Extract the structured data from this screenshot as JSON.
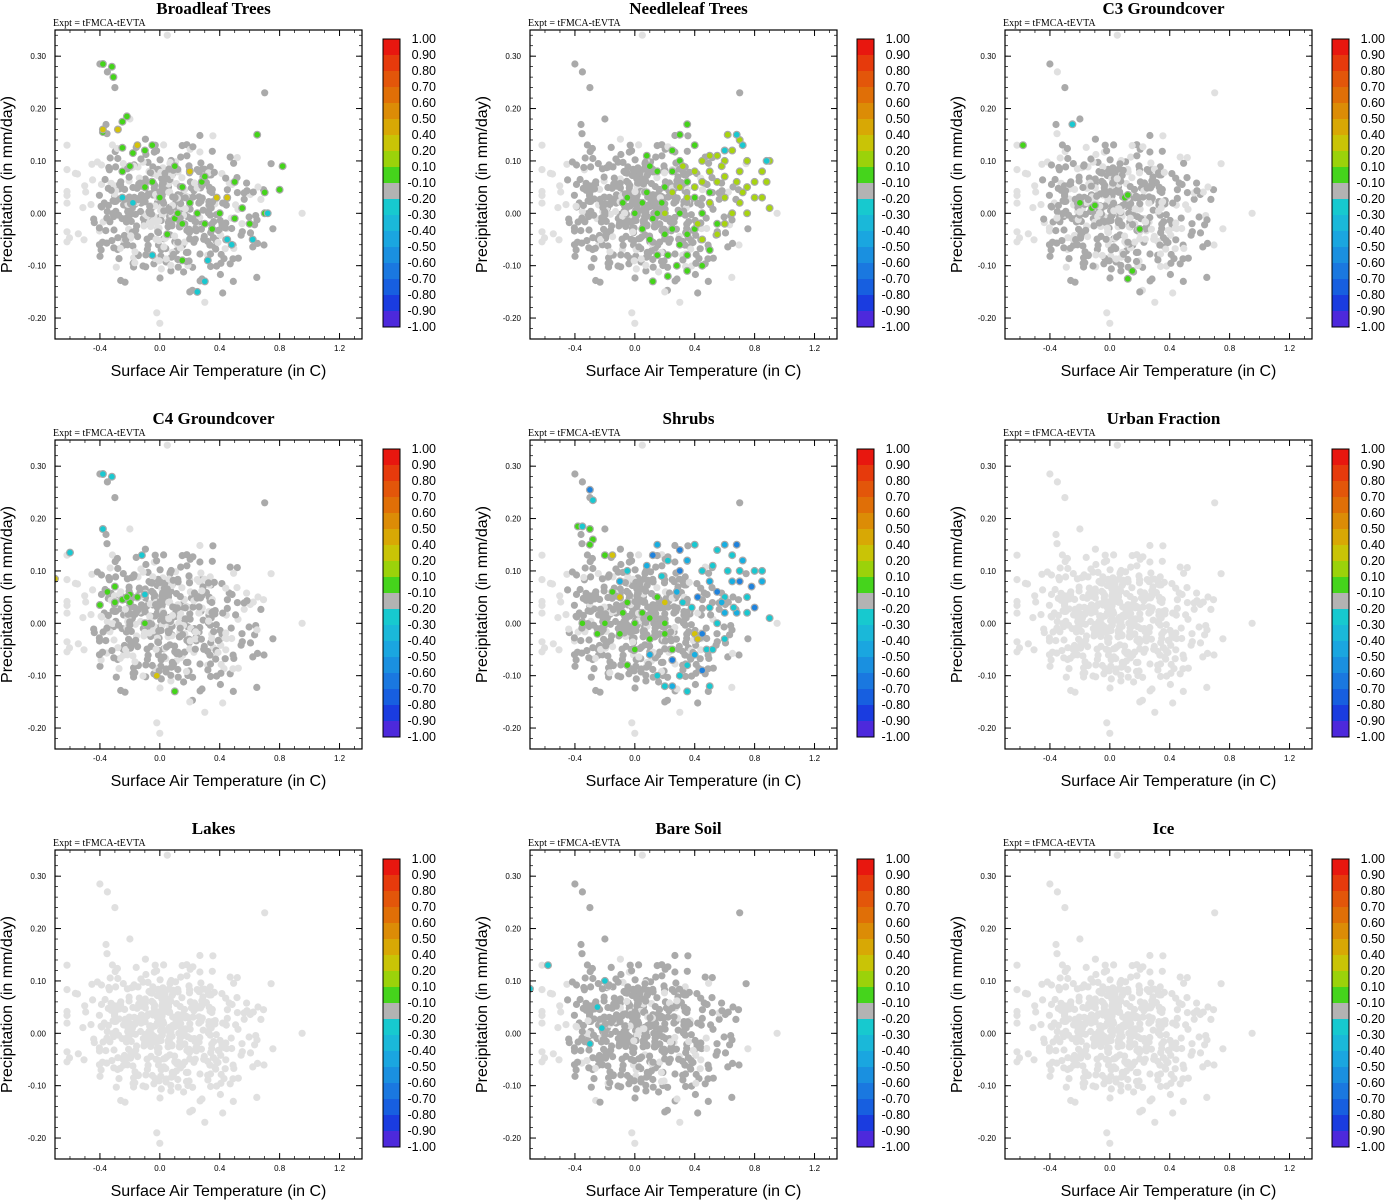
{
  "figure": {
    "expt_label": "Expt = tFMCA-tEVTA",
    "xlabel": "Surface Air Temperature (in C)",
    "ylabel": "Precipitation (in mm/day)",
    "xlim": [
      -0.7,
      1.35
    ],
    "ylim": [
      -0.24,
      0.35
    ],
    "xticks": [
      -0.4,
      0.0,
      0.4,
      0.8,
      1.2
    ],
    "xtick_labels": [
      "-0.4",
      "0.0",
      "0.4",
      "0.8",
      "1.2"
    ],
    "yticks": [
      -0.2,
      -0.1,
      0.0,
      0.1,
      0.2,
      0.3
    ],
    "ytick_labels": [
      "-0.20",
      "-0.10",
      "0.00",
      "0.10",
      "0.20",
      "0.30"
    ]
  },
  "colorbar": {
    "labels": [
      "1.00",
      "0.90",
      "0.80",
      "0.70",
      "0.60",
      "0.50",
      "0.40",
      "0.20",
      "0.10",
      "-0.10",
      "-0.20",
      "-0.30",
      "-0.40",
      "-0.50",
      "-0.60",
      "-0.70",
      "-0.80",
      "-0.90",
      "-1.00"
    ],
    "colors": [
      "#e8170f",
      "#e63a0c",
      "#e3560a",
      "#e06f07",
      "#dc8c06",
      "#d8a805",
      "#c9c406",
      "#9bd20a",
      "#45d41c",
      "#b3b3b3",
      "#17c9cf",
      "#1ab8d9",
      "#1aa6e0",
      "#1a90e0",
      "#1a78e0",
      "#175fe0",
      "#1a3ce0",
      "#4d29dc",
      "#8a2be0"
    ]
  },
  "colors": {
    "light_gray": "#e0e0e0",
    "gray": "#aaaaaa",
    "green": "#44d419",
    "yellow_green": "#a8d40f",
    "yellow": "#d4c20a",
    "orange": "#d8a30a",
    "cyan": "#19c8d0",
    "light_blue": "#18aee0",
    "blue": "#1f82dc",
    "dark_blue": "#1b46d8"
  },
  "chart_data": [
    {
      "type": "scatter",
      "title": "Broadleaf Trees",
      "highlight": "mixed",
      "highlight_points": [
        [
          -0.38,
          0.285
        ],
        [
          -0.32,
          0.28
        ],
        [
          -0.31,
          0.26
        ],
        [
          -0.38,
          0.155
        ],
        [
          -0.25,
          0.175
        ],
        [
          -0.22,
          0.185
        ],
        [
          -0.18,
          0.115
        ],
        [
          -0.05,
          0.13
        ],
        [
          -0.1,
          0.12
        ],
        [
          -0.25,
          0.125
        ],
        [
          -0.2,
          0.09
        ],
        [
          -0.05,
          0.06
        ],
        [
          0.1,
          0.09
        ],
        [
          0.15,
          0.05
        ],
        [
          0.28,
          0.06
        ],
        [
          0.3,
          0.07
        ],
        [
          0.5,
          0.06
        ],
        [
          0.7,
          0.04
        ],
        [
          0.8,
          0.045
        ],
        [
          0.82,
          0.09
        ],
        [
          0.65,
          0.15
        ],
        [
          0.4,
          0.0
        ],
        [
          0.5,
          -0.01
        ],
        [
          0.55,
          0.01
        ],
        [
          0.1,
          -0.01
        ],
        [
          0.12,
          0.0
        ],
        [
          0.15,
          -0.02
        ],
        [
          0.3,
          -0.02
        ],
        [
          0.35,
          -0.03
        ],
        [
          0.15,
          -0.09
        ],
        [
          0.6,
          -0.02
        ],
        [
          0.7,
          0.0
        ],
        [
          -0.1,
          0.05
        ],
        [
          -0.25,
          0.08
        ],
        [
          0.0,
          0.03
        ],
        [
          0.05,
          -0.04
        ],
        [
          0.2,
          0.02
        ],
        [
          0.25,
          0.0
        ]
      ],
      "highlight_alt": [
        [
          -0.28,
          0.16
        ],
        [
          -0.38,
          0.16
        ],
        [
          -0.15,
          0.13
        ],
        [
          0.38,
          0.03
        ],
        [
          0.45,
          0.03
        ],
        [
          0.2,
          0.08
        ]
      ],
      "highlight_neg": [
        [
          -0.25,
          0.03
        ],
        [
          -0.18,
          0.02
        ],
        [
          0.45,
          -0.05
        ],
        [
          0.48,
          -0.06
        ],
        [
          0.62,
          -0.05
        ],
        [
          0.72,
          0.0
        ],
        [
          0.3,
          -0.13
        ],
        [
          0.25,
          -0.15
        ],
        [
          -0.05,
          -0.08
        ],
        [
          0.32,
          -0.09
        ]
      ]
    },
    {
      "type": "scatter",
      "title": "Needleleaf Trees",
      "highlight": "mixed",
      "highlight_points": [
        [
          0.12,
          -0.01
        ],
        [
          0.05,
          0.02
        ],
        [
          0.08,
          0.04
        ],
        [
          0.15,
          0.0
        ],
        [
          0.2,
          0.05
        ],
        [
          0.25,
          0.08
        ],
        [
          0.3,
          0.1
        ],
        [
          0.35,
          0.06
        ],
        [
          0.4,
          0.03
        ],
        [
          0.45,
          0.0
        ],
        [
          0.5,
          0.04
        ],
        [
          0.2,
          -0.04
        ],
        [
          0.1,
          -0.05
        ],
        [
          0.3,
          -0.06
        ],
        [
          0.35,
          -0.08
        ],
        [
          0.4,
          -0.03
        ],
        [
          0.55,
          -0.02
        ],
        [
          0.0,
          0.0
        ],
        [
          0.05,
          -0.03
        ],
        [
          0.15,
          -0.08
        ],
        [
          0.25,
          -0.03
        ],
        [
          0.5,
          -0.07
        ],
        [
          0.3,
          0.15
        ],
        [
          0.35,
          0.17
        ],
        [
          0.25,
          0.12
        ],
        [
          0.4,
          0.13
        ],
        [
          0.15,
          0.08
        ],
        [
          0.08,
          0.11
        ],
        [
          -0.05,
          0.03
        ],
        [
          -0.08,
          0.02
        ],
        [
          0.45,
          -0.1
        ],
        [
          0.35,
          -0.11
        ],
        [
          0.22,
          -0.08
        ],
        [
          0.35,
          -0.04
        ],
        [
          0.1,
          0.09
        ],
        [
          0.3,
          0.0
        ],
        [
          0.18,
          0.02
        ],
        [
          0.28,
          -0.1
        ],
        [
          0.12,
          -0.13
        ],
        [
          0.22,
          -0.12
        ]
      ],
      "highlight_alt": [
        [
          0.5,
          0.08
        ],
        [
          0.55,
          0.06
        ],
        [
          0.6,
          0.1
        ],
        [
          0.65,
          0.12
        ],
        [
          0.7,
          0.08
        ],
        [
          0.75,
          0.05
        ],
        [
          0.8,
          0.06
        ],
        [
          0.85,
          0.08
        ],
        [
          0.9,
          0.1
        ],
        [
          0.62,
          0.15
        ],
        [
          0.7,
          0.14
        ],
        [
          0.45,
          0.06
        ],
        [
          0.5,
          0.02
        ],
        [
          0.6,
          0.03
        ],
        [
          0.65,
          0.0
        ],
        [
          0.7,
          0.02
        ],
        [
          0.85,
          0.03
        ],
        [
          0.9,
          0.01
        ],
        [
          0.75,
          0.1
        ],
        [
          0.4,
          0.08
        ],
        [
          0.45,
          0.1
        ],
        [
          0.55,
          0.11
        ],
        [
          0.6,
          0.07
        ],
        [
          0.35,
          0.03
        ],
        [
          0.4,
          0.05
        ],
        [
          0.3,
          0.05
        ],
        [
          0.25,
          0.04
        ],
        [
          0.2,
          0.0
        ],
        [
          0.55,
          -0.04
        ],
        [
          0.6,
          -0.02
        ],
        [
          0.45,
          -0.05
        ],
        [
          0.75,
          0.0
        ],
        [
          0.8,
          0.03
        ],
        [
          0.88,
          0.06
        ],
        [
          0.5,
          0.11
        ],
        [
          0.58,
          0.09
        ],
        [
          0.68,
          0.06
        ],
        [
          0.72,
          0.04
        ],
        [
          0.42,
          -0.02
        ],
        [
          0.32,
          0.09
        ]
      ],
      "highlight_neg": [
        [
          0.72,
          0.13
        ],
        [
          0.68,
          0.15
        ],
        [
          0.88,
          0.1
        ],
        [
          0.6,
          0.12
        ]
      ]
    },
    {
      "type": "scatter",
      "title": "C3 Groundcover",
      "highlight": "mixed",
      "highlight_points": [
        [
          -0.58,
          0.13
        ],
        [
          -0.2,
          0.02
        ],
        [
          -0.12,
          0.01
        ],
        [
          -0.1,
          0.015
        ],
        [
          0.1,
          0.03
        ],
        [
          0.12,
          0.035
        ],
        [
          0.2,
          -0.03
        ],
        [
          0.15,
          -0.11
        ],
        [
          0.12,
          -0.125
        ]
      ],
      "highlight_alt": [],
      "highlight_neg": [
        [
          -0.25,
          0.17
        ]
      ]
    },
    {
      "type": "scatter",
      "title": "C4 Groundcover",
      "highlight": "mixed",
      "highlight_points": [
        [
          -0.4,
          0.035
        ],
        [
          -0.35,
          0.06
        ],
        [
          -0.3,
          0.07
        ],
        [
          -0.25,
          0.045
        ],
        [
          -0.2,
          0.04
        ],
        [
          -0.15,
          0.05
        ],
        [
          -0.2,
          0.055
        ],
        [
          -0.1,
          0.0
        ],
        [
          0.1,
          -0.13
        ],
        [
          -0.3,
          0.04
        ],
        [
          -0.22,
          0.05
        ]
      ],
      "highlight_alt": [
        [
          -0.7,
          0.085
        ],
        [
          -0.02,
          -0.1
        ]
      ],
      "highlight_neg": [
        [
          -0.38,
          0.285
        ],
        [
          -0.32,
          0.28
        ],
        [
          -0.38,
          0.18
        ],
        [
          -0.6,
          0.135
        ],
        [
          -0.12,
          0.13
        ],
        [
          -0.1,
          0.055
        ]
      ]
    },
    {
      "type": "scatter",
      "title": "Shrubs",
      "highlight": "mixed",
      "highlight_points": [
        [
          -0.38,
          0.185
        ],
        [
          -0.28,
          0.16
        ],
        [
          -0.3,
          0.15
        ],
        [
          -0.2,
          0.13
        ],
        [
          -0.15,
          0.06
        ],
        [
          -0.08,
          0.02
        ],
        [
          -0.1,
          -0.02
        ],
        [
          0.0,
          0.0
        ],
        [
          0.1,
          -0.03
        ],
        [
          0.0,
          -0.05
        ],
        [
          -0.05,
          -0.08
        ],
        [
          0.15,
          0.05
        ],
        [
          0.2,
          0.0
        ],
        [
          -0.2,
          0.0
        ],
        [
          -0.25,
          -0.02
        ],
        [
          -0.35,
          0.0
        ],
        [
          0.1,
          0.01
        ],
        [
          0.2,
          -0.02
        ],
        [
          0.05,
          0.02
        ],
        [
          -0.3,
          0.18
        ],
        [
          -0.05,
          0.04
        ],
        [
          0.25,
          -0.05
        ]
      ],
      "highlight_alt": [
        [
          -0.15,
          0.13
        ],
        [
          -0.1,
          0.05
        ],
        [
          0.4,
          -0.02
        ],
        [
          0.42,
          -0.03
        ],
        [
          0.2,
          0.04
        ]
      ],
      "highlight_neg": [
        [
          -0.3,
          0.255
        ],
        [
          -0.28,
          0.235
        ],
        [
          -0.35,
          0.185
        ],
        [
          -0.1,
          0.08
        ],
        [
          -0.05,
          0.1
        ],
        [
          0.3,
          0.1
        ],
        [
          0.35,
          0.12
        ],
        [
          0.4,
          0.15
        ],
        [
          0.45,
          0.1
        ],
        [
          0.5,
          0.08
        ],
        [
          0.55,
          0.06
        ],
        [
          0.6,
          0.05
        ],
        [
          0.65,
          0.08
        ],
        [
          0.7,
          0.1
        ],
        [
          0.75,
          0.05
        ],
        [
          0.8,
          0.03
        ],
        [
          0.85,
          0.1
        ],
        [
          0.9,
          0.01
        ],
        [
          0.6,
          0.15
        ],
        [
          0.65,
          0.13
        ],
        [
          0.68,
          0.15
        ],
        [
          0.72,
          0.12
        ],
        [
          0.5,
          0.03
        ],
        [
          0.55,
          0.0
        ],
        [
          0.6,
          0.02
        ],
        [
          0.45,
          -0.02
        ],
        [
          0.48,
          -0.05
        ],
        [
          0.4,
          -0.06
        ],
        [
          0.35,
          -0.08
        ],
        [
          0.3,
          -0.1
        ],
        [
          0.25,
          -0.07
        ],
        [
          0.2,
          -0.12
        ],
        [
          0.15,
          -0.1
        ],
        [
          0.25,
          -0.12
        ],
        [
          0.35,
          -0.13
        ],
        [
          0.45,
          -0.09
        ],
        [
          0.1,
          -0.06
        ],
        [
          0.5,
          -0.12
        ],
        [
          0.8,
          0.1
        ],
        [
          0.85,
          0.08
        ],
        [
          0.7,
          0.08
        ],
        [
          0.75,
          0.02
        ],
        [
          0.58,
          0.04
        ],
        [
          0.62,
          0.1
        ],
        [
          0.52,
          0.11
        ],
        [
          0.42,
          0.05
        ],
        [
          0.38,
          0.03
        ],
        [
          0.32,
          0.04
        ],
        [
          0.28,
          0.06
        ],
        [
          0.18,
          0.09
        ],
        [
          0.12,
          0.13
        ],
        [
          0.08,
          0.11
        ],
        [
          0.52,
          -0.05
        ],
        [
          0.6,
          -0.03
        ],
        [
          0.68,
          0.02
        ],
        [
          0.3,
          0.14
        ],
        [
          0.22,
          0.12
        ],
        [
          0.15,
          0.15
        ],
        [
          0.55,
          0.14
        ],
        [
          0.66,
          0.03
        ],
        [
          0.78,
          0.07
        ]
      ]
    },
    {
      "type": "scatter",
      "title": "Urban Fraction",
      "highlight": "none",
      "highlight_points": [],
      "highlight_alt": [],
      "highlight_neg": []
    },
    {
      "type": "scatter",
      "title": "Lakes",
      "highlight": "none",
      "highlight_points": [],
      "highlight_alt": [],
      "highlight_neg": []
    },
    {
      "type": "scatter",
      "title": "Bare Soil",
      "highlight": "mixed",
      "highlight_points": [],
      "highlight_alt": [],
      "highlight_neg": [
        [
          -0.58,
          0.13
        ],
        [
          -0.7,
          0.085
        ],
        [
          -0.3,
          -0.02
        ],
        [
          -0.22,
          0.01
        ],
        [
          -0.25,
          0.05
        ],
        [
          -0.2,
          0.1
        ]
      ]
    },
    {
      "type": "scatter",
      "title": "Ice",
      "highlight": "none",
      "highlight_points": [],
      "highlight_alt": [],
      "highlight_neg": []
    }
  ]
}
